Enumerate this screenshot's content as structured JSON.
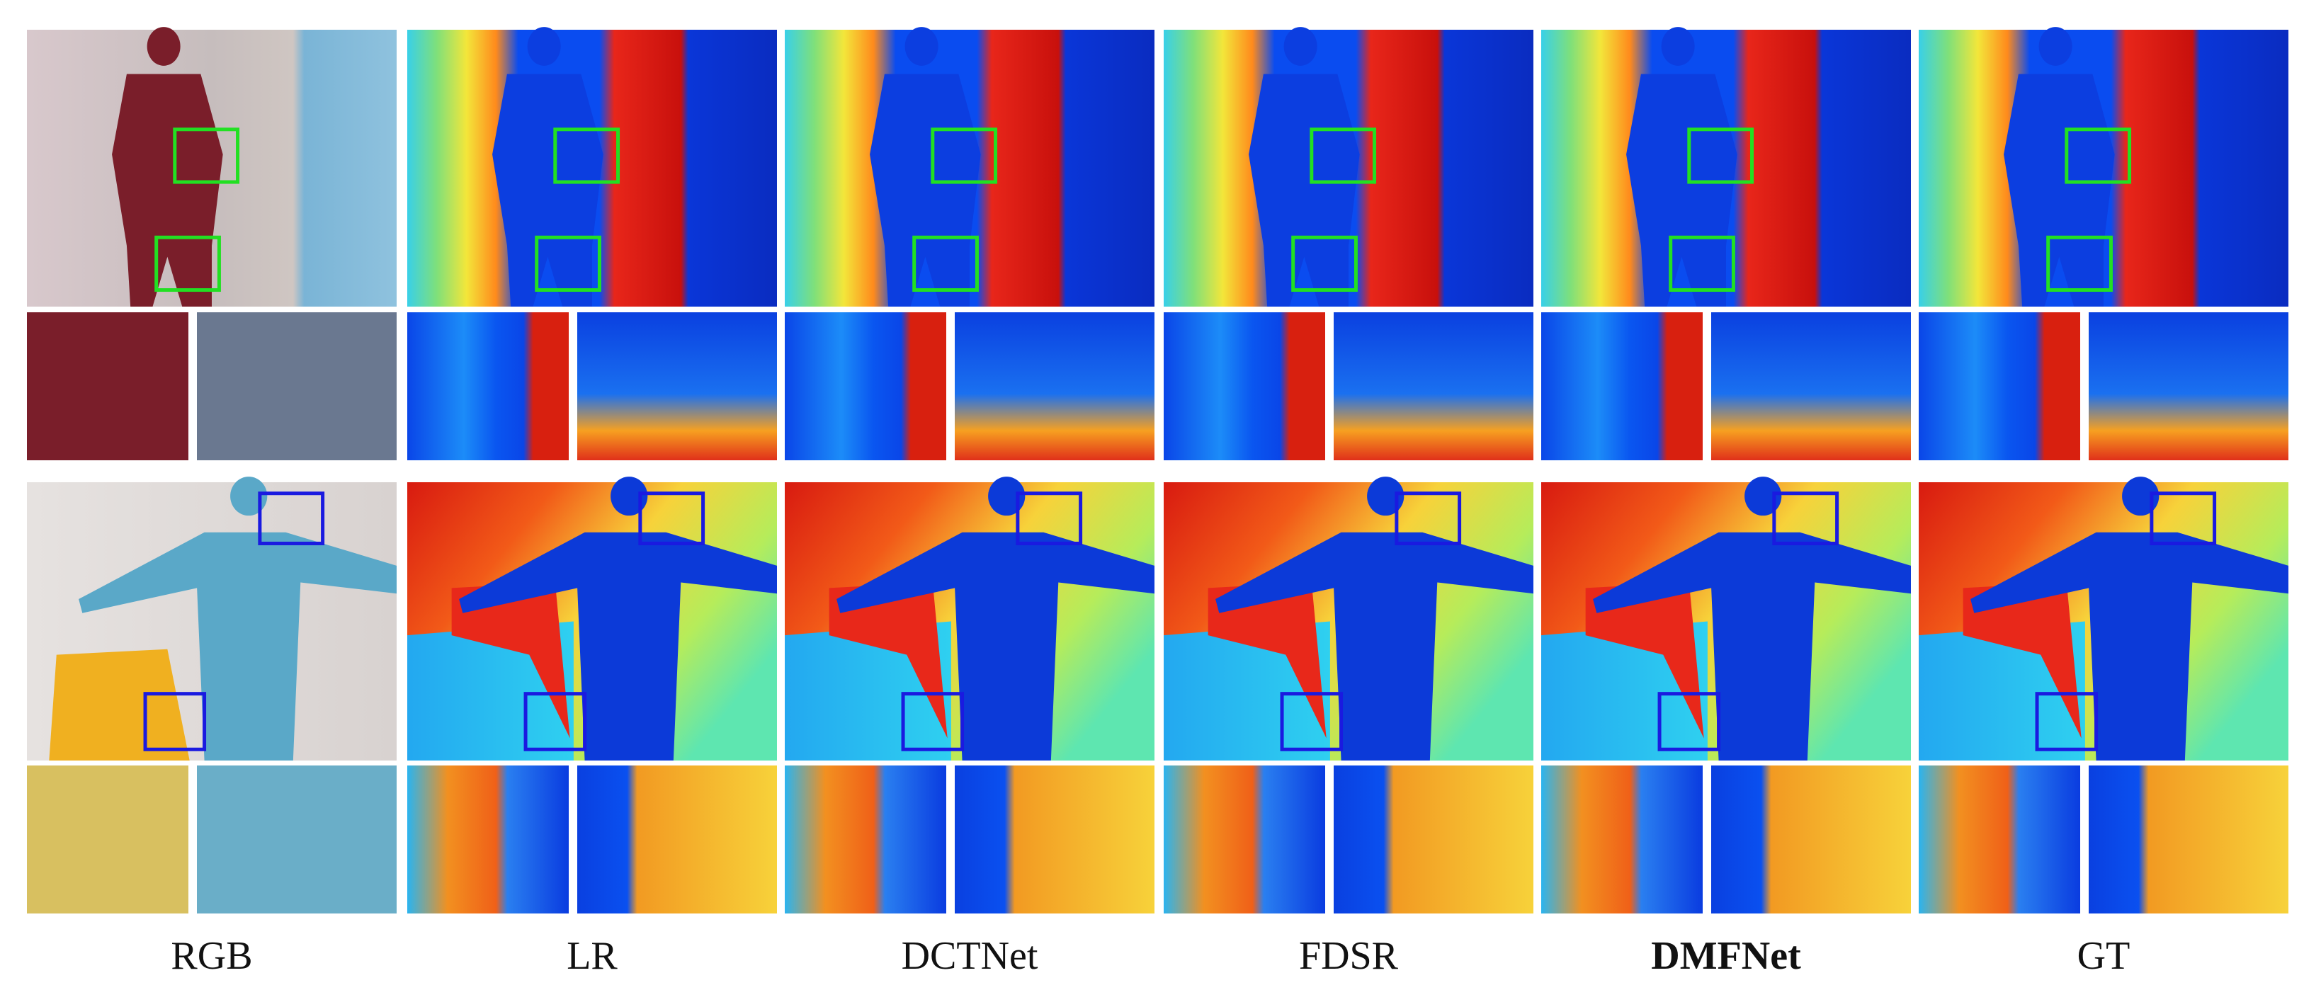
{
  "columns": [
    {
      "label": "RGB"
    },
    {
      "label": "LR"
    },
    {
      "label": "DCTNet"
    },
    {
      "label": "FDSR"
    },
    {
      "label": "DMFNet"
    },
    {
      "label": "GT"
    }
  ]
}
